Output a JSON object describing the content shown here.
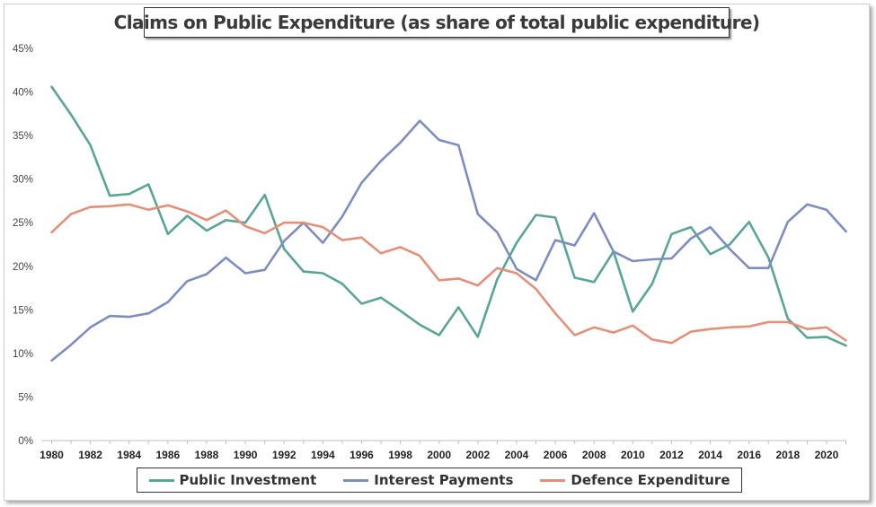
{
  "chart_data": {
    "type": "line",
    "title": "Claims on Public Expenditure (as share of total public expenditure)",
    "xlabel": "",
    "ylabel": "",
    "ylim": [
      0,
      45
    ],
    "xlim": [
      1980,
      2021
    ],
    "y_ticks": [
      "0%",
      "5%",
      "10%",
      "15%",
      "20%",
      "25%",
      "30%",
      "35%",
      "40%",
      "45%"
    ],
    "x_ticks": [
      "1980",
      "1982",
      "1984",
      "1986",
      "1988",
      "1990",
      "1992",
      "1994",
      "1996",
      "1998",
      "2000",
      "2002",
      "2004",
      "2006",
      "2008",
      "2010",
      "2012",
      "2014",
      "2016",
      "2018",
      "2020"
    ],
    "grid": false,
    "legend_position": "bottom",
    "x": [
      1980,
      1981,
      1982,
      1983,
      1984,
      1985,
      1986,
      1987,
      1988,
      1989,
      1990,
      1991,
      1992,
      1993,
      1994,
      1995,
      1996,
      1997,
      1998,
      1999,
      2000,
      2001,
      2002,
      2003,
      2004,
      2005,
      2006,
      2007,
      2008,
      2009,
      2010,
      2011,
      2012,
      2013,
      2014,
      2015,
      2016,
      2017,
      2018,
      2019,
      2020,
      2021
    ],
    "series": [
      {
        "name": "Public Investment",
        "color": "#5aa595",
        "values": [
          40.6,
          37.4,
          33.9,
          28.1,
          28.3,
          29.4,
          23.7,
          25.8,
          24.1,
          25.3,
          25.0,
          28.2,
          22.0,
          19.4,
          19.2,
          18.0,
          15.7,
          16.4,
          14.9,
          13.3,
          12.1,
          15.3,
          11.9,
          18.5,
          22.7,
          25.9,
          25.6,
          18.7,
          18.2,
          21.7,
          14.8,
          18.0,
          23.7,
          24.5,
          21.4,
          22.5,
          25.1,
          21.0,
          14.0,
          11.8,
          11.9,
          10.9
        ]
      },
      {
        "name": "Interest Payments",
        "color": "#7e8dc0",
        "values": [
          9.2,
          11.0,
          13.0,
          14.3,
          14.2,
          14.6,
          15.9,
          18.3,
          19.1,
          21.0,
          19.2,
          19.6,
          22.9,
          25.0,
          22.7,
          25.7,
          29.6,
          32.1,
          34.2,
          36.7,
          34.5,
          33.9,
          26.0,
          23.9,
          19.7,
          18.4,
          23.0,
          22.4,
          26.1,
          21.7,
          20.6,
          20.8,
          20.9,
          23.2,
          24.5,
          22.0,
          19.8,
          19.8,
          25.1,
          27.1,
          26.5,
          24.0
        ]
      },
      {
        "name": "Defence Expenditure",
        "color": "#e0917a",
        "values": [
          23.9,
          26.0,
          26.8,
          26.9,
          27.1,
          26.5,
          27.0,
          26.3,
          25.3,
          26.4,
          24.6,
          23.8,
          25.0,
          25.0,
          24.5,
          23.0,
          23.3,
          21.5,
          22.2,
          21.2,
          18.4,
          18.6,
          17.8,
          19.8,
          19.2,
          17.4,
          14.6,
          12.1,
          13.0,
          12.4,
          13.2,
          11.6,
          11.2,
          12.5,
          12.8,
          13.0,
          13.1,
          13.6,
          13.6,
          12.8,
          13.0,
          11.5
        ]
      }
    ]
  }
}
